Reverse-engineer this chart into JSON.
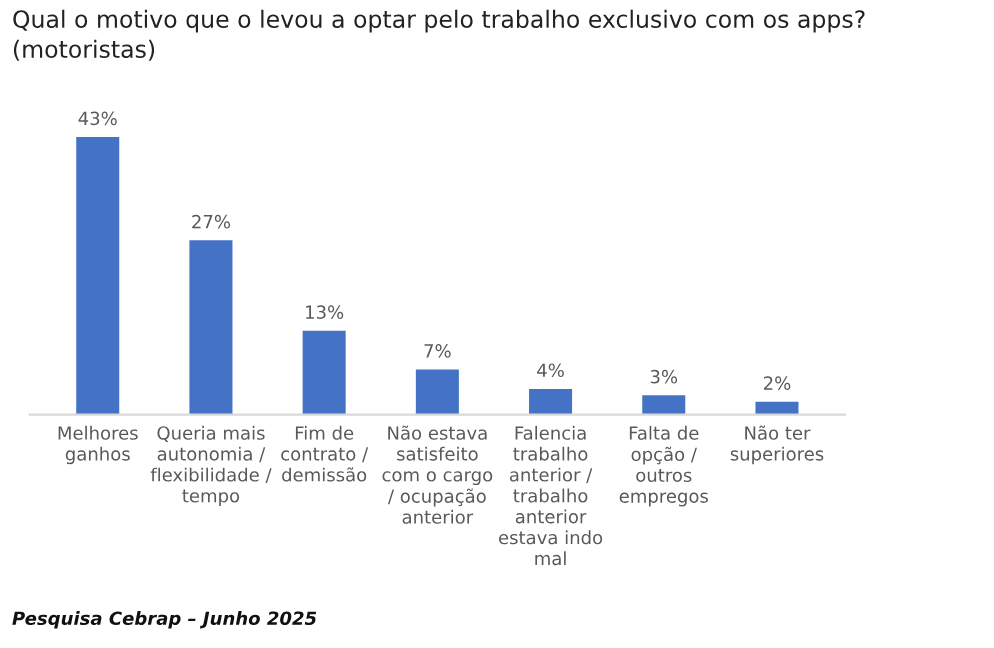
{
  "chart_data": {
    "type": "bar",
    "title": "Qual o motivo que o levou a optar pelo trabalho exclusivo com os apps?\n(motoristas)",
    "categories": [
      "Melhores\nganhos",
      "Queria mais\nautonomia /\nflexibilidade /\ntempo",
      "Fim de\ncontrato /\ndemissão",
      "Não estava\nsatisfeito\ncom o cargo\n/ ocupação\nanterior",
      "Falencia\ntrabalho\nanterior /\ntrabalho\nanterior\nestava indo\nmal",
      "Falta de\nopção /\noutros\nempregos",
      "Não ter\nsuperiores"
    ],
    "values": [
      43,
      27,
      13,
      7,
      4,
      3,
      2
    ],
    "value_labels": [
      "43%",
      "27%",
      "13%",
      "7%",
      "4%",
      "3%",
      "2%"
    ],
    "color": "#4472c4",
    "grid": false,
    "legend": false,
    "annotations": [
      "Pesquisa Cebrap – Junho 2025"
    ]
  }
}
